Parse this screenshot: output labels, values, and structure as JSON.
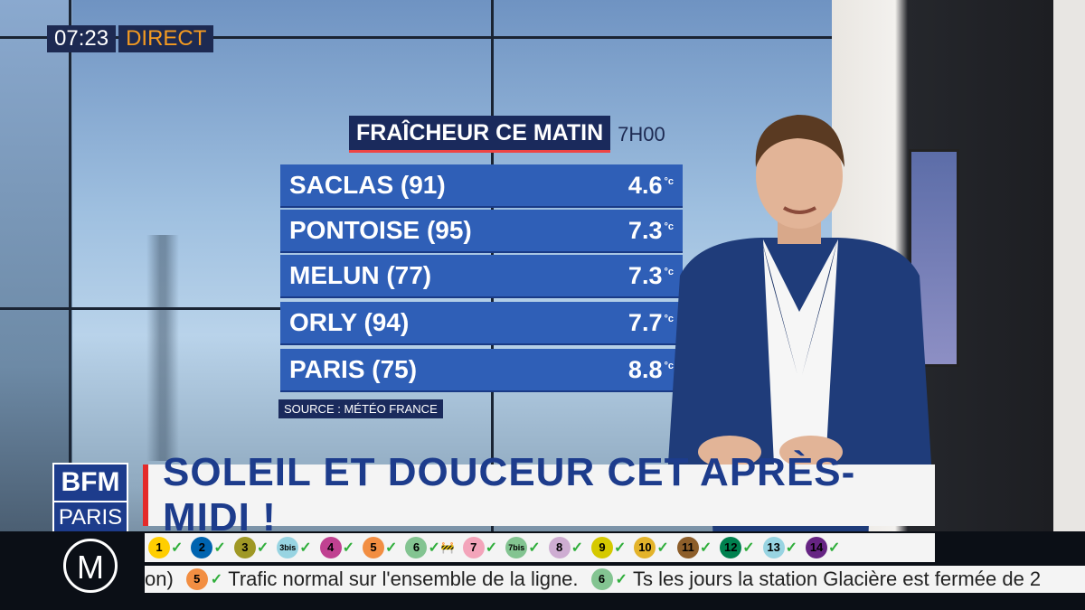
{
  "overlay": {
    "time": "07:23",
    "live_label": "DIRECT"
  },
  "weather_table": {
    "title": "FRAÎCHEUR CE MATIN",
    "hour": "7H00",
    "rows": [
      {
        "city": "SACLAS (91)",
        "temp": "4.6"
      },
      {
        "city": "PONTOISE (95)",
        "temp": "7.3"
      },
      {
        "city": "MELUN (77)",
        "temp": "7.3"
      },
      {
        "city": "ORLY (94)",
        "temp": "7.7"
      },
      {
        "city": "PARIS (75)",
        "temp": "8.8"
      }
    ],
    "unit": "°c",
    "source": "SOURCE : MÉTÉO FRANCE"
  },
  "channel": {
    "top": "BFM",
    "bottom": "PARIS"
  },
  "headline": "SOLEIL ET DOUCEUR CET APRÈS-MIDI !",
  "metro": {
    "logo": "M",
    "lines": [
      {
        "label": "1",
        "color": "#ffce00"
      },
      {
        "label": "2",
        "color": "#0064b0"
      },
      {
        "label": "3",
        "color": "#9f9825"
      },
      {
        "label": "3bis",
        "color": "#98d4e2"
      },
      {
        "label": "4",
        "color": "#c04191"
      },
      {
        "label": "5",
        "color": "#f28e42"
      },
      {
        "label": "6",
        "color": "#83c491",
        "works": true
      },
      {
        "label": "7",
        "color": "#f3a4ba"
      },
      {
        "label": "7bis",
        "color": "#83c491"
      },
      {
        "label": "8",
        "color": "#ceadd2"
      },
      {
        "label": "9",
        "color": "#d5c900"
      },
      {
        "label": "10",
        "color": "#e3b32a"
      },
      {
        "label": "11",
        "color": "#8d5e2a"
      },
      {
        "label": "12",
        "color": "#00814f"
      },
      {
        "label": "13",
        "color": "#98d4e2"
      },
      {
        "label": "14",
        "color": "#662483"
      }
    ],
    "ticker": {
      "lead": "on)",
      "items": [
        {
          "line": "5",
          "color": "#f28e42",
          "text": "Trafic normal sur l'ensemble de la ligne."
        },
        {
          "line": "6",
          "color": "#83c491",
          "text": "Ts les jours la station Glacière est fermée de 2"
        }
      ]
    }
  }
}
